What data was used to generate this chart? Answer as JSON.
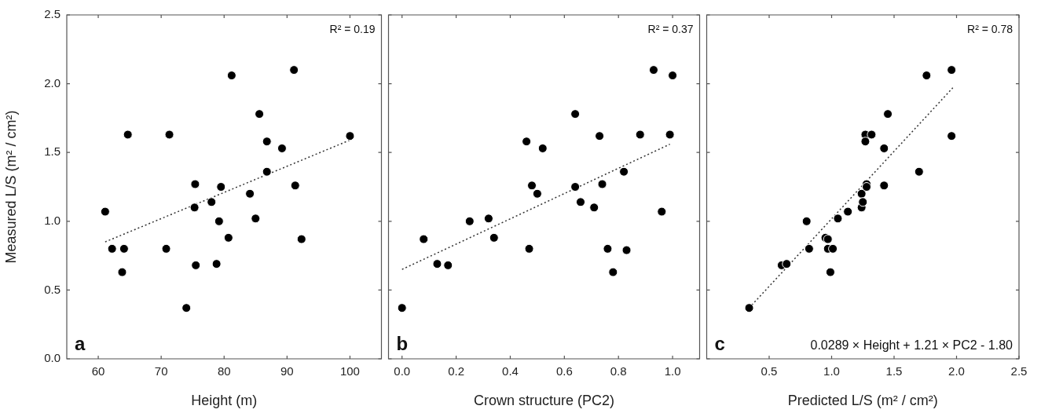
{
  "chart_data": [
    {
      "type": "scatter",
      "xlabel": "Height (m)",
      "ylabel": "Measured L/S (m² / cm²)",
      "xlim": [
        55,
        105
      ],
      "xticks": [
        60,
        70,
        80,
        90,
        100
      ],
      "ylim": [
        0,
        2.5
      ],
      "yticks": [
        {
          "value": 0,
          "label": "0.0"
        },
        {
          "value": 0.5,
          "label": "0.5"
        },
        {
          "value": 1,
          "label": "1.0"
        },
        {
          "value": 1.5,
          "label": "1.5"
        },
        {
          "value": 2,
          "label": "2.0"
        },
        {
          "value": 2.5,
          "label": "2.5"
        }
      ],
      "grid": false,
      "annotations": [
        "R² = 0.19",
        "a"
      ],
      "series": [
        {
          "type": "scatter",
          "color": "#000000",
          "marker": "circle",
          "x": [
            61.1,
            62.2,
            64.1,
            63.8,
            64.7,
            70.8,
            71.3,
            74.0,
            75.4,
            75.3,
            75.5,
            78.0,
            78.8,
            79.2,
            79.5,
            80.7,
            81.2,
            84.1,
            85.0,
            85.6,
            86.8,
            86.8,
            89.2,
            91.1,
            91.3,
            92.3,
            100
          ],
          "values": [
            1.07,
            0.8,
            0.8,
            0.63,
            1.63,
            0.8,
            1.63,
            0.37,
            1.27,
            1.1,
            0.68,
            1.14,
            0.69,
            1.0,
            1.25,
            0.88,
            2.06,
            1.2,
            1.02,
            1.78,
            1.58,
            1.36,
            1.53,
            2.1,
            1.26,
            0.87,
            1.62
          ]
        },
        {
          "type": "line",
          "color": "#333333",
          "marker": "none",
          "line_style": "dotted",
          "x": [
            61.1,
            100
          ],
          "values": [
            0.85,
            1.59
          ]
        }
      ]
    },
    {
      "type": "scatter",
      "xlabel": "Crown structure (PC2)",
      "xlim": [
        -0.05,
        1.1
      ],
      "xticks": [
        {
          "value": 0,
          "label": "0.0"
        },
        {
          "value": 0.2,
          "label": "0.2"
        },
        {
          "value": 0.4,
          "label": "0.4"
        },
        {
          "value": 0.6,
          "label": "0.6"
        },
        {
          "value": 0.8,
          "label": "0.8"
        },
        {
          "value": 1,
          "label": "1.0"
        }
      ],
      "ylim": [
        0,
        2.5
      ],
      "yticks": [
        {
          "value": 0,
          "label": null
        },
        {
          "value": 0.5,
          "label": null
        },
        {
          "value": 1,
          "label": null
        },
        {
          "value": 1.5,
          "label": null
        },
        {
          "value": 2,
          "label": null
        },
        {
          "value": 2.5,
          "label": null
        }
      ],
      "tick_labels": "x",
      "grid": false,
      "annotations": [
        "R² = 0.37",
        "b"
      ],
      "series": [
        {
          "type": "scatter",
          "color": "#000000",
          "marker": "circle",
          "x": [
            0.0,
            0.08,
            0.13,
            0.17,
            0.25,
            0.32,
            0.34,
            0.46,
            0.47,
            0.48,
            0.5,
            0.52,
            0.64,
            0.64,
            0.66,
            0.71,
            0.73,
            0.74,
            0.76,
            0.78,
            0.82,
            0.83,
            0.88,
            0.93,
            0.96,
            0.99,
            1.0
          ],
          "values": [
            0.37,
            0.87,
            0.69,
            0.68,
            1.0,
            1.02,
            0.88,
            1.58,
            0.8,
            1.26,
            1.2,
            1.53,
            1.78,
            1.25,
            1.14,
            1.1,
            1.62,
            1.27,
            0.8,
            0.63,
            1.36,
            0.79,
            1.63,
            2.1,
            1.07,
            1.63,
            2.06
          ]
        },
        {
          "type": "line",
          "color": "#333333",
          "marker": "none",
          "line_style": "dotted",
          "x": [
            0,
            0.99
          ],
          "values": [
            0.65,
            1.56
          ]
        }
      ]
    },
    {
      "type": "scatter",
      "xlabel": "Predicted L/S (m² / cm²)",
      "xlim": [
        0,
        2.5
      ],
      "xticks": [
        0.5,
        {
          "value": 1,
          "label": "1.0"
        },
        1.5,
        {
          "value": 2,
          "label": "2.0"
        },
        2.5
      ],
      "ylim": [
        0,
        2.5
      ],
      "yticks": [
        {
          "value": 0,
          "label": null
        },
        {
          "value": 0.5,
          "label": null
        },
        {
          "value": 1,
          "label": null
        },
        {
          "value": 1.5,
          "label": null
        },
        {
          "value": 2,
          "label": null
        },
        {
          "value": 2.5,
          "label": null
        }
      ],
      "tick_labels": "x",
      "grid": false,
      "annotations": [
        "R² = 0.78",
        "c",
        "0.0289 × Height + 1.21 × PC2 - 1.80"
      ],
      "series": [
        {
          "type": "scatter",
          "color": "#000000",
          "marker": "circle",
          "x": [
            0.34,
            0.6,
            0.64,
            0.8,
            0.82,
            0.95,
            0.97,
            0.97,
            1.01,
            0.99,
            1.05,
            1.13,
            1.24,
            1.24,
            1.25,
            1.27,
            1.27,
            1.28,
            1.28,
            1.32,
            1.42,
            1.42,
            1.45,
            1.7,
            1.76,
            1.96,
            1.96
          ],
          "values": [
            0.37,
            0.68,
            0.69,
            1.0,
            0.8,
            0.88,
            0.87,
            0.8,
            0.8,
            0.63,
            1.02,
            1.07,
            1.1,
            1.2,
            1.14,
            1.63,
            1.58,
            1.27,
            1.25,
            1.63,
            1.53,
            1.26,
            1.78,
            1.36,
            2.06,
            2.1,
            1.62
          ]
        },
        {
          "type": "line",
          "color": "#333333",
          "marker": "none",
          "line_style": "dotted",
          "x": [
            0.34,
            1.97
          ],
          "values": [
            0.37,
            1.97
          ]
        }
      ]
    }
  ]
}
